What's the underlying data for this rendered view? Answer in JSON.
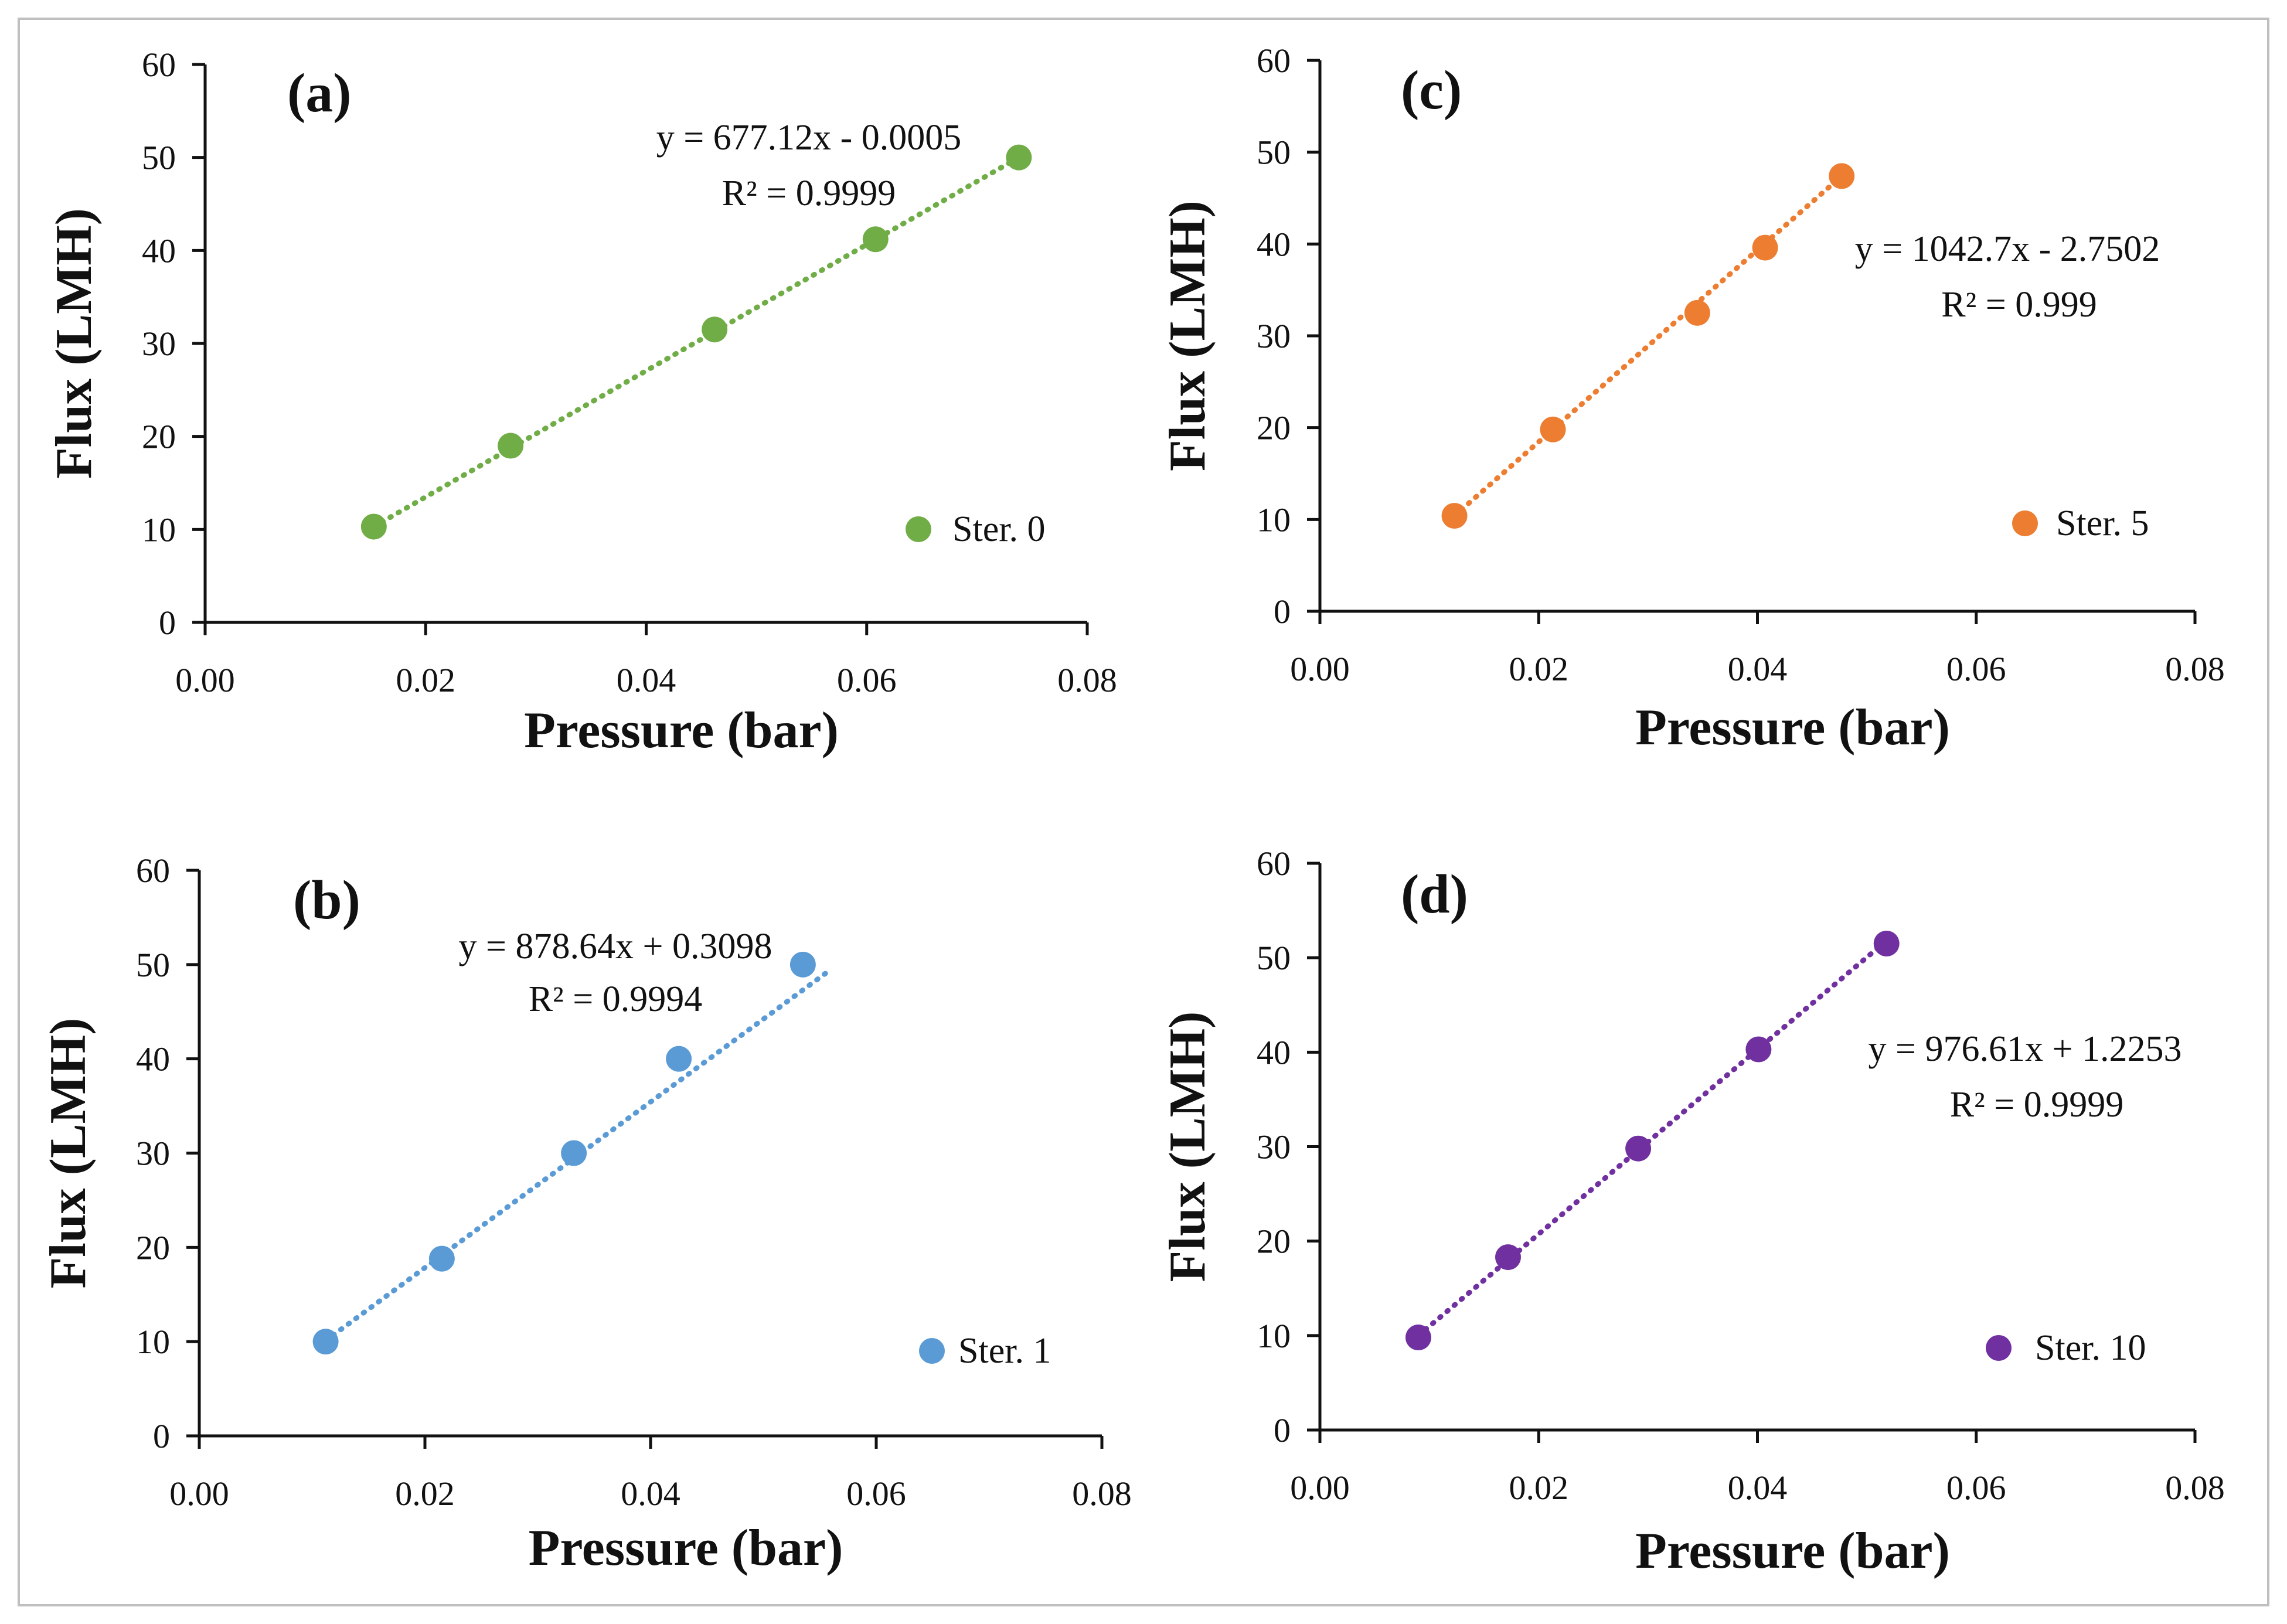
{
  "chart_data": [
    {
      "type": "scatter",
      "panel_label": "(a)",
      "color": "#70ad47",
      "xlabel": "Pressure (bar)",
      "ylabel": "Flux (LMH)",
      "xlim": [
        0,
        0.08
      ],
      "ylim": [
        0,
        60
      ],
      "x_ticks": [
        "0.00",
        "0.02",
        "0.04",
        "0.06",
        "0.08"
      ],
      "y_ticks": [
        "0",
        "10",
        "20",
        "30",
        "40",
        "50",
        "60"
      ],
      "series": [
        {
          "name": "Ster. 0",
          "x": [
            0.0153,
            0.0277,
            0.0462,
            0.0608,
            0.0738
          ],
          "y": [
            10.3,
            19.0,
            31.5,
            41.2,
            50.0
          ]
        }
      ],
      "trendline": {
        "x": [
          0.0153,
          0.0738
        ],
        "y": [
          10.3,
          50.0
        ]
      },
      "equation": "y = 677.12x  - 0.0005",
      "r2": "R² = 0.9999",
      "legend_position": "bottom-right"
    },
    {
      "type": "scatter",
      "panel_label": "(c)",
      "color": "#ed7d31",
      "xlabel": "Pressure (bar)",
      "ylabel": "Flux (LMH)",
      "xlim": [
        0,
        0.08
      ],
      "ylim": [
        0,
        60
      ],
      "x_ticks": [
        "0.00",
        "0.02",
        "0.04",
        "0.06",
        "0.08"
      ],
      "y_ticks": [
        "0",
        "10",
        "20",
        "30",
        "40",
        "50",
        "60"
      ],
      "series": [
        {
          "name": "Ster. 5",
          "x": [
            0.0123,
            0.0213,
            0.0345,
            0.0407,
            0.0477
          ],
          "y": [
            10.4,
            19.8,
            32.5,
            39.6,
            47.4
          ]
        }
      ],
      "trendline": {
        "x": [
          0.0123,
          0.0477
        ],
        "y": [
          10.4,
          47.4
        ]
      },
      "equation": "y = 1042.7x  - 2.7502",
      "r2": "R² = 0.999",
      "legend_position": "bottom-right"
    },
    {
      "type": "scatter",
      "panel_label": "(b)",
      "color": "#5b9bd5",
      "xlabel": "Pressure (bar)",
      "ylabel": "Flux (LMH)",
      "xlim": [
        0,
        0.08
      ],
      "ylim": [
        0,
        60
      ],
      "x_ticks": [
        "0.00",
        "0.02",
        "0.04",
        "0.06",
        "0.08"
      ],
      "y_ticks": [
        "0",
        "10",
        "20",
        "30",
        "40",
        "50",
        "60"
      ],
      "series": [
        {
          "name": "Ster. 1",
          "x": [
            0.0112,
            0.0215,
            0.0332,
            0.0425,
            0.0535
          ],
          "y": [
            10.0,
            18.8,
            30.0,
            40.0,
            50.0
          ]
        }
      ],
      "trendline": {
        "x": [
          0.0112,
          0.056
        ],
        "y": [
          10.1,
          49.5
        ]
      },
      "equation": "y = 878.64x + 0.3098",
      "r2": "R² = 0.9994",
      "legend_position": "bottom-right"
    },
    {
      "type": "scatter",
      "panel_label": "(d)",
      "color": "#7030a0",
      "xlabel": "Pressure (bar)",
      "ylabel": "Flux (LMH)",
      "xlim": [
        0,
        0.08
      ],
      "ylim": [
        0,
        60
      ],
      "x_ticks": [
        "0.00",
        "0.02",
        "0.04",
        "0.06",
        "0.08"
      ],
      "y_ticks": [
        "0",
        "10",
        "20",
        "30",
        "40",
        "50",
        "60"
      ],
      "series": [
        {
          "name": "Ster. 10",
          "x": [
            0.009,
            0.0172,
            0.0291,
            0.0401,
            0.0518
          ],
          "y": [
            9.8,
            18.3,
            29.8,
            40.3,
            51.5
          ]
        }
      ],
      "trendline": {
        "x": [
          0.009,
          0.0518
        ],
        "y": [
          10.0,
          51.8
        ]
      },
      "equation": "y = 976.61x + 1.2253",
      "r2": "R² = 0.9999",
      "legend_position": "bottom-right"
    }
  ]
}
